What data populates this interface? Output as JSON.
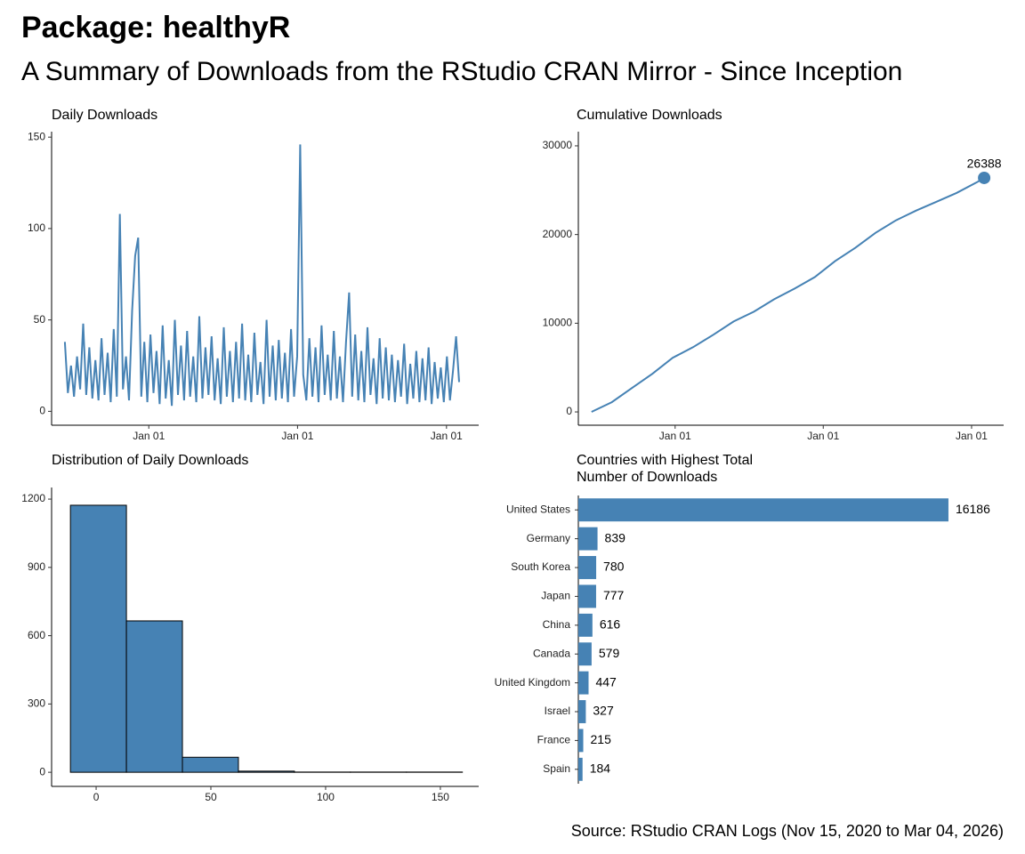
{
  "title": "Package: healthyR",
  "subtitle": "A Summary of Downloads from the RStudio CRAN Mirror - Since Inception",
  "caption": "Source: RStudio CRAN Logs (Nov 15, 2020 to Mar 04, 2026)",
  "chart_data": [
    {
      "type": "line",
      "title": "Daily Downloads",
      "color": "#4682b4",
      "x": [
        0,
        15,
        30,
        45,
        60,
        75,
        90,
        105,
        120,
        135,
        150,
        165,
        180,
        195,
        210,
        225,
        240,
        255,
        270,
        285,
        300,
        315,
        330,
        345,
        360,
        375,
        390,
        405,
        420,
        435,
        450,
        465,
        480,
        495,
        510,
        525,
        540,
        555,
        570,
        585,
        600,
        615,
        630,
        645,
        660,
        675,
        690,
        705,
        720,
        735,
        750,
        765,
        780,
        795,
        810,
        825,
        840,
        855,
        870,
        885,
        900,
        915,
        930,
        945,
        960,
        975,
        990,
        1005,
        1020,
        1035,
        1050,
        1065,
        1080,
        1095,
        1110,
        1125,
        1140,
        1155,
        1170,
        1185,
        1200,
        1215,
        1230,
        1245,
        1260,
        1275,
        1290,
        1305,
        1320,
        1335,
        1350,
        1365,
        1380,
        1395,
        1410,
        1425,
        1440,
        1455,
        1470,
        1485,
        1500,
        1515,
        1530,
        1545,
        1560,
        1575,
        1590,
        1605,
        1620,
        1635,
        1650,
        1665,
        1680,
        1695,
        1710,
        1725,
        1740,
        1755,
        1770,
        1785,
        1800,
        1815,
        1830,
        1845,
        1860,
        1875,
        1890,
        1905,
        1920,
        1935
      ],
      "values": [
        38,
        10,
        25,
        8,
        30,
        12,
        48,
        9,
        35,
        7,
        28,
        6,
        40,
        9,
        32,
        5,
        45,
        8,
        108,
        12,
        30,
        6,
        55,
        85,
        95,
        8,
        38,
        5,
        42,
        10,
        33,
        4,
        47,
        7,
        28,
        3,
        50,
        9,
        36,
        6,
        44,
        8,
        30,
        5,
        52,
        7,
        35,
        9,
        41,
        6,
        29,
        4,
        46,
        8,
        33,
        5,
        38,
        7,
        48,
        6,
        31,
        5,
        43,
        9,
        27,
        4,
        50,
        8,
        36,
        6,
        39,
        7,
        32,
        5,
        45,
        8,
        30,
        146,
        20,
        6,
        40,
        8,
        35,
        5,
        47,
        9,
        31,
        6,
        44,
        7,
        30,
        5,
        38,
        65,
        8,
        42,
        6,
        33,
        5,
        46,
        9,
        29,
        4,
        40,
        7,
        35,
        6,
        31,
        5,
        28,
        8,
        37,
        4,
        26,
        7,
        33,
        5,
        29,
        6,
        35,
        4,
        27,
        7,
        24,
        5,
        30,
        6,
        22,
        41,
        16
      ],
      "xlim": [
        -65,
        2031
      ],
      "ylim": [
        -7.6,
        153
      ],
      "xticks": [
        {
          "value": 412,
          "label": "Jan 01"
        },
        {
          "value": 1142,
          "label": "Jan 01"
        },
        {
          "value": 1873,
          "label": "Jan 01"
        }
      ],
      "yticks": [
        0,
        50,
        100,
        150
      ]
    },
    {
      "type": "line",
      "title": "Cumulative Downloads",
      "color": "#4682b4",
      "marker_last": true,
      "x": [
        0,
        100,
        200,
        300,
        400,
        500,
        600,
        700,
        800,
        900,
        1000,
        1100,
        1200,
        1300,
        1400,
        1500,
        1600,
        1700,
        1800,
        1900,
        1935
      ],
      "values": [
        0,
        1100,
        2700,
        4300,
        6100,
        7300,
        8700,
        10200,
        11300,
        12700,
        13900,
        15200,
        17000,
        18500,
        20200,
        21600,
        22700,
        23700,
        24700,
        25900,
        26388
      ],
      "xlim": [
        -65,
        2031
      ],
      "ylim": [
        -1500,
        31600
      ],
      "xticks": [
        {
          "value": 412,
          "label": "Jan 01"
        },
        {
          "value": 1142,
          "label": "Jan 01"
        },
        {
          "value": 1873,
          "label": "Jan 01"
        }
      ],
      "yticks": [
        0,
        10000,
        20000,
        30000
      ]
    },
    {
      "type": "histogram",
      "title": "Distribution of Daily Downloads",
      "color": "#4682b4",
      "bins": [
        -11.2,
        13.2,
        37.6,
        62,
        86.4,
        110.8,
        135.2,
        159.6
      ],
      "counts": [
        1173,
        665,
        66,
        5,
        1,
        1,
        1
      ],
      "xlim": [
        -19.4,
        166.7
      ],
      "ylim": [
        -62,
        1251
      ],
      "xticks": [
        0,
        50,
        100,
        150
      ],
      "yticks": [
        0,
        300,
        600,
        900,
        1200
      ]
    },
    {
      "type": "hbar",
      "title": [
        "Countries with Highest Total",
        "Number of Downloads"
      ],
      "color": "#4682b4",
      "categories": [
        "United States",
        "Germany",
        "South Korea",
        "Japan",
        "China",
        "Canada",
        "United Kingdom",
        "Israel",
        "France",
        "Spain"
      ],
      "values": [
        16186,
        839,
        780,
        777,
        616,
        579,
        447,
        327,
        215,
        184
      ],
      "xlim": [
        0,
        18600
      ]
    }
  ]
}
